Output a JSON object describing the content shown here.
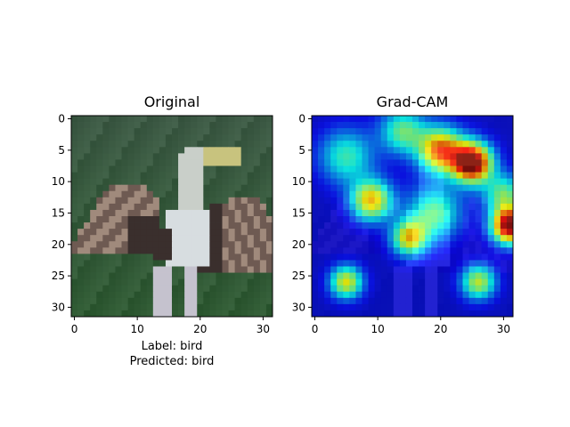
{
  "chart_data": [
    {
      "type": "heatmap",
      "title": "Original",
      "xlabel": "",
      "ylabel": "",
      "xlim": [
        -0.5,
        31.5
      ],
      "ylim": [
        31.5,
        -0.5
      ],
      "xticks": [
        0,
        10,
        20,
        30
      ],
      "yticks": [
        0,
        5,
        10,
        15,
        20,
        25,
        30
      ],
      "caption_lines": [
        "Label: bird",
        "Predicted: bird"
      ],
      "grid": false,
      "image_description_colors": {
        "background_top": "#3d5a45",
        "background_bottom": "#2f5a33",
        "bird_body": "#d7dde0",
        "bird_neck": "#c9cfc9",
        "beak": "#c8c37e",
        "wing": "#6e5a52",
        "wing_highlight": "#a08a7c",
        "wing_dark": "#3a2f2d",
        "legs": "#c5c2ce"
      }
    },
    {
      "type": "heatmap",
      "title": "Grad-CAM",
      "xlabel": "",
      "ylabel": "",
      "xlim": [
        -0.5,
        31.5
      ],
      "ylim": [
        31.5,
        -0.5
      ],
      "xticks": [
        0,
        10,
        20,
        30
      ],
      "yticks": [
        0,
        5,
        10,
        15,
        20,
        25,
        30
      ],
      "colormap": "jet",
      "overlay_alpha": 0.5,
      "grid": false,
      "hotspots": [
        {
          "x": 25,
          "y": 7,
          "intensity": 1.0,
          "sigma": 2.2
        },
        {
          "x": 31,
          "y": 17,
          "intensity": 0.95,
          "sigma": 2.0
        },
        {
          "x": 20,
          "y": 5,
          "intensity": 0.7,
          "sigma": 2.5
        },
        {
          "x": 9,
          "y": 13,
          "intensity": 0.6,
          "sigma": 2.3
        },
        {
          "x": 15,
          "y": 19,
          "intensity": 0.55,
          "sigma": 2.0
        },
        {
          "x": 5,
          "y": 26,
          "intensity": 0.55,
          "sigma": 1.8
        },
        {
          "x": 26,
          "y": 26,
          "intensity": 0.5,
          "sigma": 1.9
        },
        {
          "x": 19,
          "y": 15,
          "intensity": 0.4,
          "sigma": 3.0
        },
        {
          "x": 30,
          "y": 12,
          "intensity": 0.4,
          "sigma": 2.2
        },
        {
          "x": 5,
          "y": 6,
          "intensity": 0.35,
          "sigma": 3.0
        },
        {
          "x": 14,
          "y": 2,
          "intensity": 0.4,
          "sigma": 2.5
        }
      ]
    }
  ]
}
